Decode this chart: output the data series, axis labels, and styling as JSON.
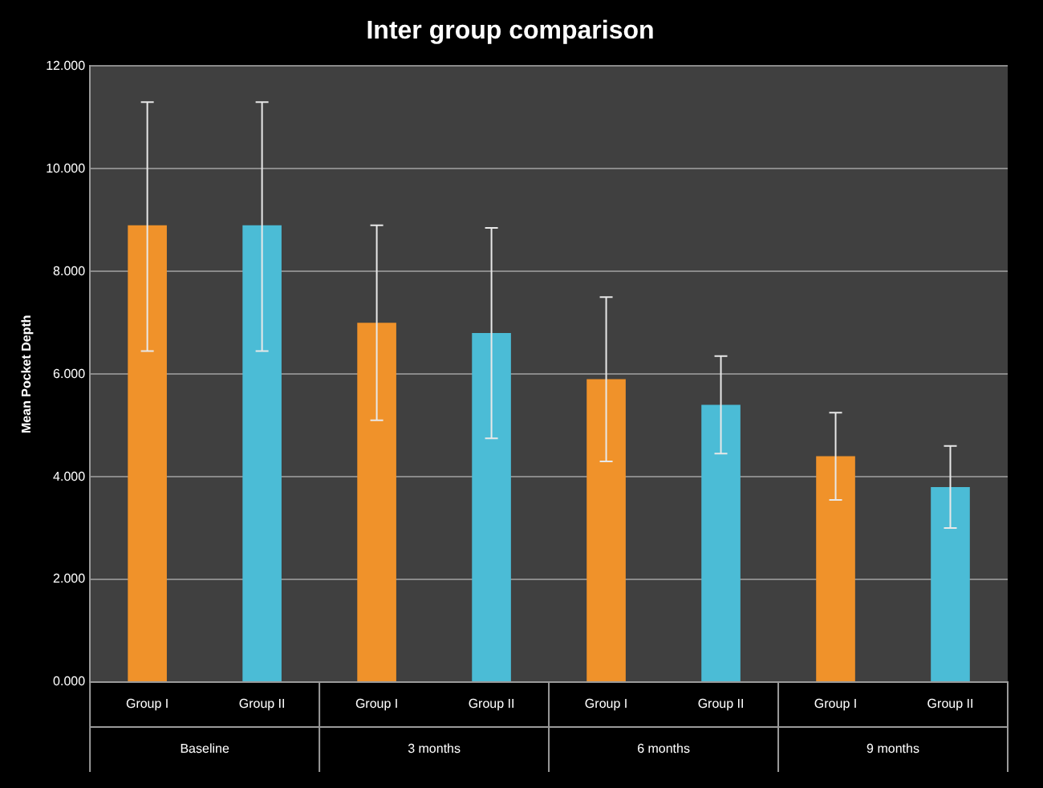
{
  "chart_data": {
    "type": "bar",
    "title": "Inter group comparison",
    "ylabel": "Mean Pocket Depth",
    "categories": [
      "Baseline",
      "3 months",
      "6 months",
      "9 months"
    ],
    "series": [
      {
        "name": "Group I",
        "color": "#f0922a",
        "values": [
          8.9,
          7.0,
          5.9,
          4.4
        ],
        "errors": [
          [
            6.45,
            11.3
          ],
          [
            5.1,
            8.9
          ],
          [
            4.3,
            7.5
          ],
          [
            3.55,
            5.25
          ]
        ]
      },
      {
        "name": "Group II",
        "color": "#4bbcd6",
        "values": [
          8.9,
          6.8,
          5.4,
          3.8
        ],
        "errors": [
          [
            6.45,
            11.3
          ],
          [
            4.75,
            8.85
          ],
          [
            4.45,
            6.35
          ],
          [
            3.0,
            4.6
          ]
        ]
      }
    ],
    "ylim": [
      0,
      12
    ],
    "yticks": [
      {
        "value": 0,
        "label": "0.000"
      },
      {
        "value": 2,
        "label": "2.000"
      },
      {
        "value": 4,
        "label": "4.000"
      },
      {
        "value": 6,
        "label": "6.000"
      },
      {
        "value": 8,
        "label": "8.000"
      },
      {
        "value": 10,
        "label": "10.000"
      },
      {
        "value": 12,
        "label": "12.000"
      }
    ],
    "grid": "y",
    "legend": false
  }
}
